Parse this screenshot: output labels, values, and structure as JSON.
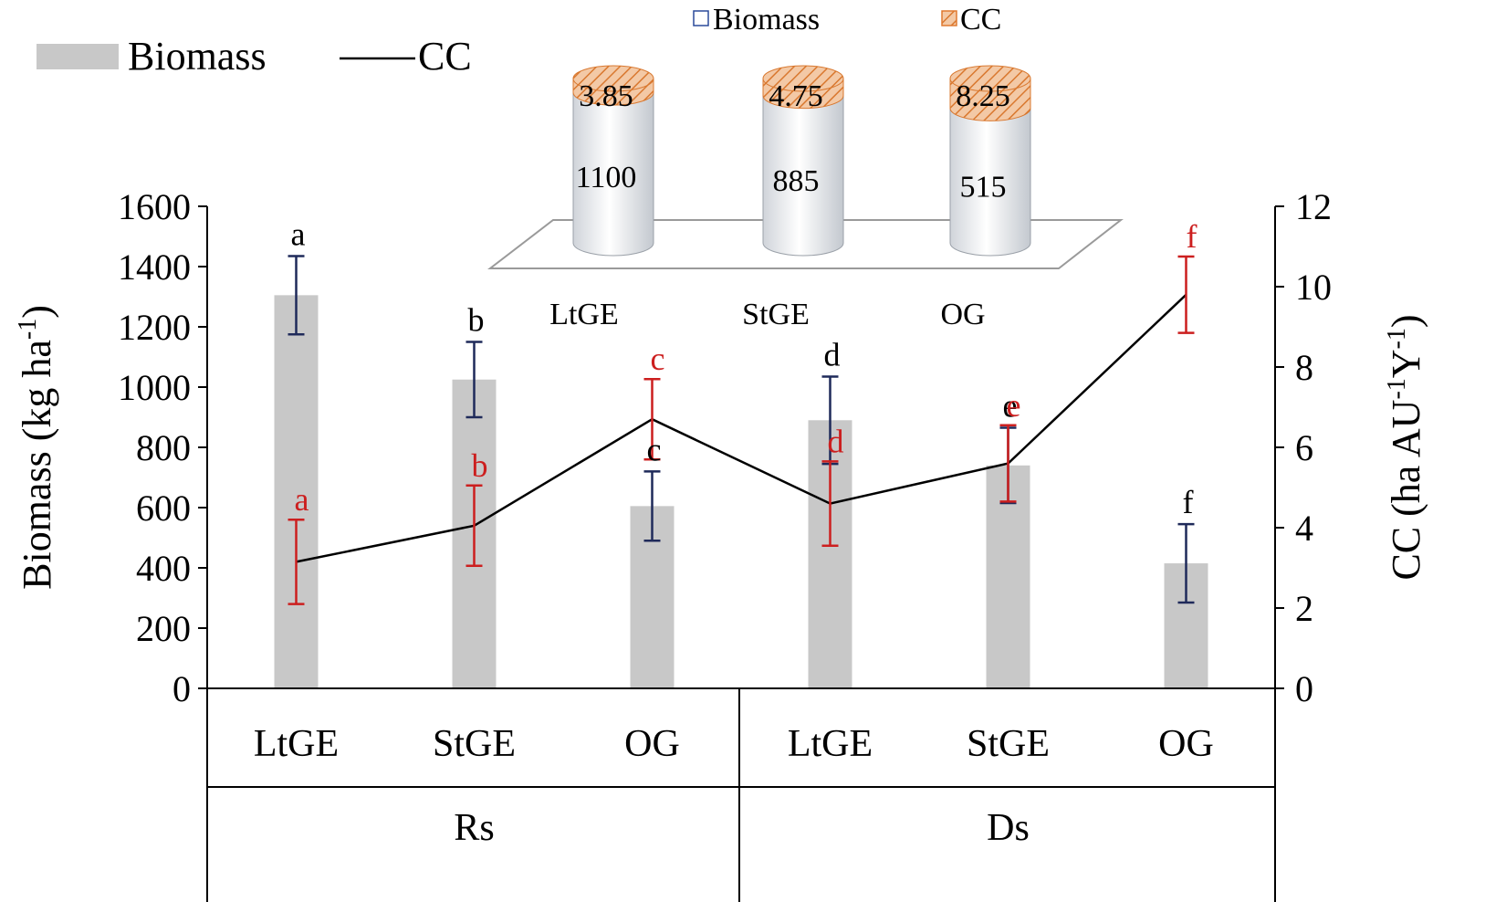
{
  "chart_data": {
    "type": "bar",
    "groups": [
      "Rs",
      "Ds"
    ],
    "categories": [
      "LtGE",
      "StGE",
      "OG",
      "LtGE",
      "StGE",
      "OG"
    ],
    "ylabel": "Biomass (kg ha",
    "ylabel_sup": "-1",
    "ylabel_end": ")",
    "y2label": "CC (ha AU",
    "y2label_sup1": "-1",
    "y2label_mid": "Y",
    "y2label_sup2": "-1",
    "y2label_end": ")",
    "ylim": [
      0,
      1600
    ],
    "y2lim": [
      0,
      12
    ],
    "y_ticks": [
      "0",
      "200",
      "400",
      "600",
      "800",
      "1000",
      "1200",
      "1400",
      "1600"
    ],
    "y2_ticks": [
      "0",
      "2",
      "4",
      "6",
      "8",
      "10",
      "12"
    ],
    "legend": {
      "bar_label": "Biomass",
      "line_label": "CC"
    },
    "series": [
      {
        "name": "Biomass",
        "kind": "bar",
        "color": "#c8c8c8",
        "error_color": "#1f2a5a",
        "values": [
          1305,
          1025,
          605,
          890,
          740,
          415
        ],
        "errors": [
          130,
          125,
          115,
          145,
          125,
          130
        ],
        "letters": [
          "a",
          "b",
          "c",
          "d",
          "e",
          "f"
        ]
      },
      {
        "name": "CC",
        "kind": "line",
        "axis": "right",
        "color": "#000000",
        "error_color": "#cc1f1f",
        "values": [
          3.15,
          4.05,
          6.7,
          4.6,
          5.6,
          9.8
        ],
        "errors": [
          1.05,
          1.0,
          1.0,
          1.05,
          0.95,
          0.95
        ],
        "letters": [
          "a",
          "b",
          "c",
          "d",
          "e",
          "f"
        ]
      }
    ],
    "inset": {
      "type": "stacked-cylinder",
      "legend": [
        "Biomass",
        "CC"
      ],
      "categories": [
        "LtGE",
        "StGE",
        "OG"
      ],
      "biomass": [
        1100,
        885,
        515
      ],
      "cc": [
        3.85,
        4.75,
        8.25
      ],
      "biomass_labels": [
        "1100",
        "885",
        "515"
      ],
      "cc_labels": [
        "3.85",
        "4.75",
        "8.25"
      ],
      "biomass_color": "#e9ecef",
      "cc_color": "#e4925a",
      "biomass_legend_color": "#2b4a9a",
      "cc_legend_color": "#e07a30"
    }
  }
}
